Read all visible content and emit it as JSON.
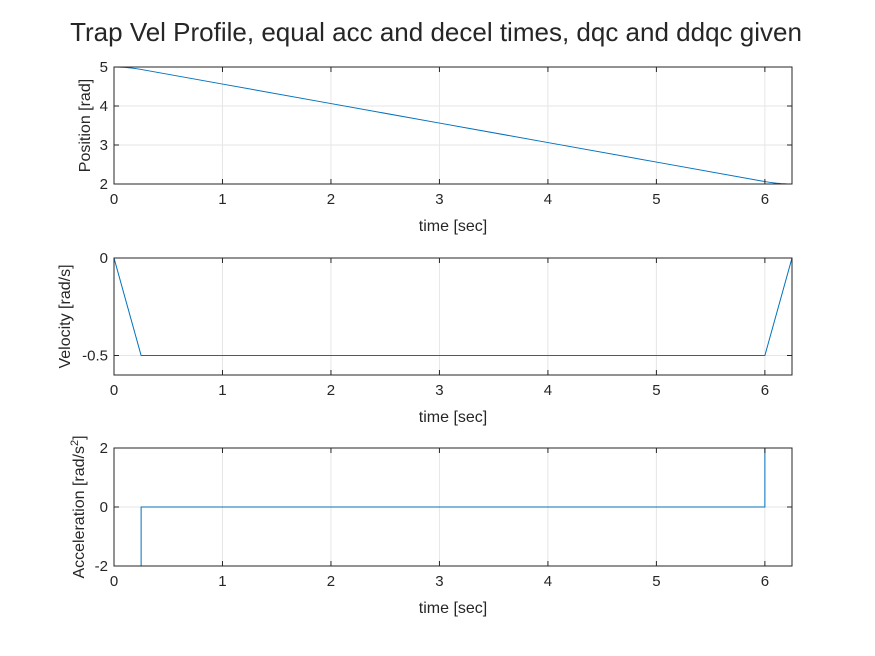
{
  "figure": {
    "title": "Trap Vel Profile, equal acc and decel times, dqc and ddqc given"
  },
  "colors": {
    "line": "#0072BD",
    "grid": "#e6e6e6",
    "axis": "#262626"
  },
  "chart_data": [
    {
      "type": "line",
      "title": "Trap Vel Profile, equal acc and decel times, dqc and ddqc given",
      "xlabel": "time [sec]",
      "ylabel": "Position [rad]",
      "xlim": [
        0,
        6.25
      ],
      "ylim": [
        2,
        5
      ],
      "xticks": [
        0,
        1,
        2,
        3,
        4,
        5,
        6
      ],
      "yticks": [
        2,
        3,
        4,
        5
      ],
      "ytick_labels": [
        "2",
        "3",
        "4",
        "5"
      ],
      "grid": true,
      "series": [
        {
          "x": [
            0,
            0.05,
            0.1,
            0.15,
            0.2,
            0.25,
            1,
            2,
            3,
            4,
            5,
            6,
            6.05,
            6.1,
            6.15,
            6.2,
            6.25
          ],
          "y": [
            5.0,
            4.9975,
            4.99,
            4.9775,
            4.96,
            4.9375,
            4.5625,
            4.0625,
            3.5625,
            3.0625,
            2.5625,
            2.0625,
            2.04,
            2.0225,
            2.01,
            2.0025,
            2.0
          ]
        }
      ]
    },
    {
      "type": "line",
      "xlabel": "time [sec]",
      "ylabel": "Velocity [rad/s]",
      "xlim": [
        0,
        6.25
      ],
      "ylim": [
        -0.6,
        0
      ],
      "xticks": [
        0,
        1,
        2,
        3,
        4,
        5,
        6
      ],
      "yticks": [
        -0.5,
        0
      ],
      "ytick_labels": [
        "-0.5",
        "0"
      ],
      "grid": true,
      "series": [
        {
          "x": [
            0,
            0.25,
            6.0,
            6.25
          ],
          "y": [
            0,
            -0.5,
            -0.5,
            0
          ]
        }
      ]
    },
    {
      "type": "line",
      "xlabel": "time [sec]",
      "ylabel": "Acceleration [rad/s2]",
      "xlim": [
        0,
        6.25
      ],
      "ylim": [
        -2,
        2
      ],
      "xticks": [
        0,
        1,
        2,
        3,
        4,
        5,
        6
      ],
      "yticks": [
        -2,
        0,
        2
      ],
      "ytick_labels": [
        "-2",
        "0",
        "2"
      ],
      "grid": true,
      "series": [
        {
          "x": [
            0,
            0.25,
            0.25,
            6.0,
            6.0,
            6.25
          ],
          "y": [
            -2,
            -2,
            0,
            0,
            2,
            2
          ]
        }
      ]
    }
  ]
}
